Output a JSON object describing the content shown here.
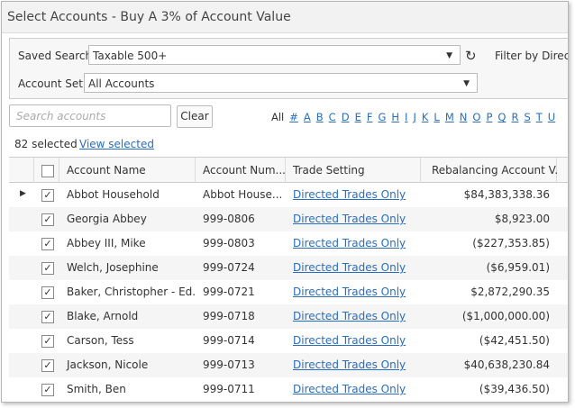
{
  "header": {
    "title": "Select Accounts - Buy A 3% of Account Value"
  },
  "filters": {
    "saved_search_label": "Saved Search:",
    "saved_search_value": "Taxable 500+",
    "filter_by": "Filter by Direct",
    "account_set_label": "Account Set:",
    "account_set_value": "All Accounts"
  },
  "search": {
    "placeholder": "Search accounts",
    "clear": "Clear"
  },
  "alphabet": {
    "all": "All",
    "letters": [
      "#",
      "A",
      "B",
      "C",
      "D",
      "E",
      "F",
      "G",
      "H",
      "I",
      "J",
      "K",
      "L",
      "M",
      "N",
      "O",
      "P",
      "Q",
      "R",
      "S",
      "T",
      "U"
    ]
  },
  "selection": {
    "count": "82 selected",
    "view": "View selected"
  },
  "table": {
    "columns": [
      "Account Name",
      "Account Num...",
      "Trade Setting",
      "Rebalancing Account V..."
    ],
    "rows": [
      [
        "Abbot Household",
        "Abbot House...",
        "Directed Trades Only",
        "$84,383,338.36"
      ],
      [
        "Georgia Abbey",
        "999-0806",
        "Directed Trades Only",
        "$8,923.00"
      ],
      [
        "Abbey III, Mike",
        "999-0803",
        "Directed Trades Only",
        "($227,353.85)"
      ],
      [
        "Welch, Josephine",
        "999-0724",
        "Directed Trades Only",
        "($6,959.01)"
      ],
      [
        "Baker, Christopher - Ed...",
        "999-0721",
        "Directed Trades Only",
        "$2,872,290.35"
      ],
      [
        "Blake, Arnold",
        "999-0718",
        "Directed Trades Only",
        "($1,000,000.00)"
      ],
      [
        "Carson, Tess",
        "999-0714",
        "Directed Trades Only",
        "($42,451.50)"
      ],
      [
        "Jackson, Nicole",
        "999-0713",
        "Directed Trades Only",
        "$40,638,230.84"
      ],
      [
        "Smith, Ben",
        "999-0711",
        "Directed Trades Only",
        "($39,436.50)"
      ]
    ]
  }
}
